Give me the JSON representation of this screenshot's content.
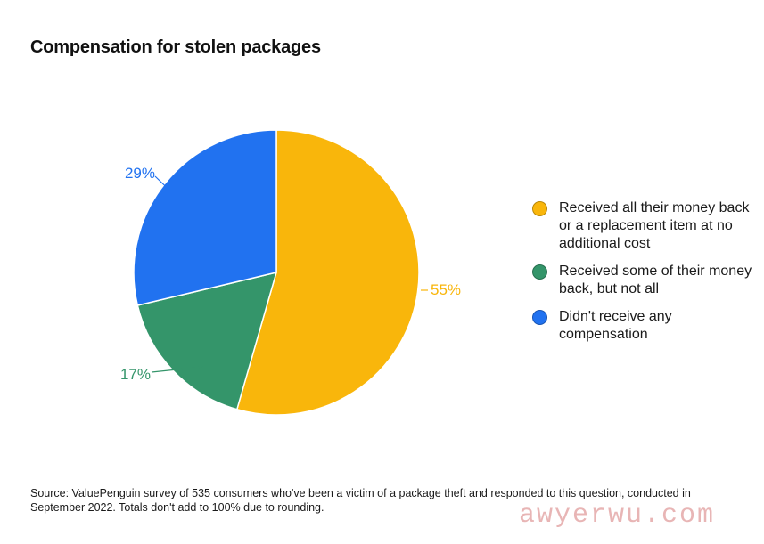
{
  "title": "Compensation for stolen packages",
  "chart_data": {
    "type": "pie",
    "title": "Compensation for stolen packages",
    "slices": [
      {
        "label": "Received all their money back or a replacement item at no additional cost",
        "value": 55,
        "display": "55%",
        "color": "#F9B60B"
      },
      {
        "label": "Received some of their money back, but not all",
        "value": 17,
        "display": "17%",
        "color": "#34956A"
      },
      {
        "label": "Didn't receive any compensation",
        "value": 29,
        "display": "29%",
        "color": "#2172F0"
      }
    ],
    "legend_placement": "right"
  },
  "legend": [
    {
      "label": "Received all their money back or a replacement item at no additional cost",
      "color": "#F9B60B"
    },
    {
      "label": "Received some of their money back, but not all",
      "color": "#34956A"
    },
    {
      "label": "Didn't receive any compensation",
      "color": "#2172F0"
    }
  ],
  "source": "Source: ValuePenguin survey of 535 consumers who've been a victim of a package theft and responded to this question, conducted in September 2022. Totals don't add to 100% due to rounding.",
  "watermark": "awyerwu.com"
}
